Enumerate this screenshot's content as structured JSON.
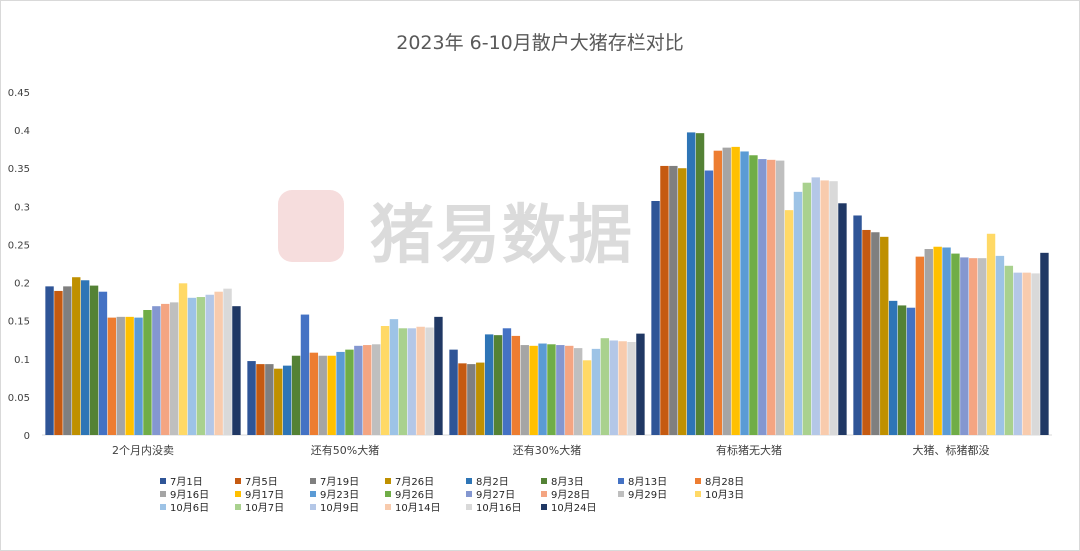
{
  "chart_data": {
    "type": "bar",
    "title": "2023年 6-10月散户大猪存栏对比",
    "ylim": [
      0,
      0.45
    ],
    "yticks": [
      "0",
      "0.05",
      "0.1",
      "0.15",
      "0.2",
      "0.25",
      "0.3",
      "0.35",
      "0.4",
      "0.45"
    ],
    "categories": [
      "2个月内没卖",
      "还有50%大猪",
      "还有30%大猪",
      "有标猪无大猪",
      "大猪、标猪都没"
    ],
    "legend_position": "bottom",
    "series": [
      {
        "name": "7月1日",
        "color": "#2f5597",
        "values": [
          0.195,
          0.097,
          0.112,
          0.307,
          0.288
        ]
      },
      {
        "name": "7月5日",
        "color": "#c55a11",
        "values": [
          0.189,
          0.093,
          0.094,
          0.353,
          0.269
        ]
      },
      {
        "name": "7月19日",
        "color": "#7f7f7f",
        "values": [
          0.195,
          0.093,
          0.093,
          0.353,
          0.266
        ]
      },
      {
        "name": "7月26日",
        "color": "#bf9000",
        "values": [
          0.207,
          0.087,
          0.095,
          0.35,
          0.26
        ]
      },
      {
        "name": "8月2日",
        "color": "#2e75b6",
        "values": [
          0.203,
          0.091,
          0.132,
          0.397,
          0.176
        ]
      },
      {
        "name": "8月3日",
        "color": "#548235",
        "values": [
          0.196,
          0.104,
          0.131,
          0.396,
          0.17
        ]
      },
      {
        "name": "8月13日",
        "color": "#4472c4",
        "values": [
          0.188,
          0.158,
          0.14,
          0.347,
          0.167
        ]
      },
      {
        "name": "8月28日",
        "color": "#ed7d31",
        "values": [
          0.154,
          0.108,
          0.13,
          0.373,
          0.234
        ]
      },
      {
        "name": "9月16日",
        "color": "#a5a5a5",
        "values": [
          0.155,
          0.104,
          0.118,
          0.377,
          0.244
        ]
      },
      {
        "name": "9月17日",
        "color": "#ffc000",
        "values": [
          0.155,
          0.104,
          0.117,
          0.378,
          0.247
        ]
      },
      {
        "name": "9月23日",
        "color": "#5b9bd5",
        "values": [
          0.154,
          0.109,
          0.12,
          0.372,
          0.246
        ]
      },
      {
        "name": "9月26日",
        "color": "#70ad47",
        "values": [
          0.164,
          0.112,
          0.119,
          0.367,
          0.238
        ]
      },
      {
        "name": "9月27日",
        "color": "#8497d0",
        "values": [
          0.169,
          0.117,
          0.118,
          0.362,
          0.233
        ]
      },
      {
        "name": "9月28日",
        "color": "#f4a582",
        "values": [
          0.172,
          0.118,
          0.117,
          0.361,
          0.232
        ]
      },
      {
        "name": "9月29日",
        "color": "#bfbfbf",
        "values": [
          0.174,
          0.119,
          0.114,
          0.36,
          0.232
        ]
      },
      {
        "name": "10月3日",
        "color": "#ffd966",
        "values": [
          0.199,
          0.143,
          0.098,
          0.295,
          0.264
        ]
      },
      {
        "name": "10月6日",
        "color": "#9dc3e6",
        "values": [
          0.18,
          0.152,
          0.113,
          0.319,
          0.235
        ]
      },
      {
        "name": "10月7日",
        "color": "#a9d18e",
        "values": [
          0.181,
          0.14,
          0.127,
          0.331,
          0.222
        ]
      },
      {
        "name": "10月9日",
        "color": "#b4c7e7",
        "values": [
          0.184,
          0.14,
          0.124,
          0.338,
          0.213
        ]
      },
      {
        "name": "10月14日",
        "color": "#f8cbad",
        "values": [
          0.188,
          0.142,
          0.123,
          0.334,
          0.213
        ]
      },
      {
        "name": "10月16日",
        "color": "#d9d9d9",
        "values": [
          0.192,
          0.141,
          0.122,
          0.333,
          0.212
        ]
      },
      {
        "name": "10月24日",
        "color": "#203864",
        "values": [
          0.169,
          0.155,
          0.133,
          0.304,
          0.239
        ]
      }
    ]
  },
  "watermark": {
    "text": "猪易数据"
  }
}
